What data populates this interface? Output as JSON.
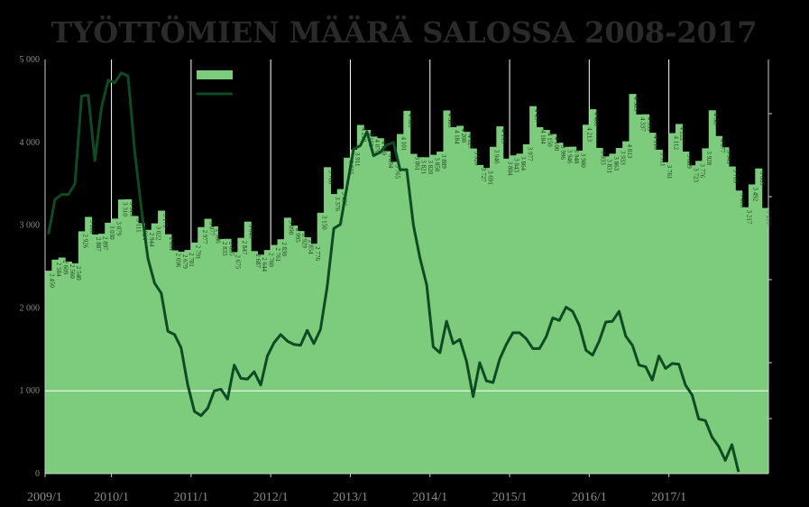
{
  "chart_data": {
    "type": "bar+line",
    "title": "TYÖTTÖMIEN MÄÄRÄ SALOSSA 2008-2017",
    "y_ticks": [
      "5 000",
      "4 000",
      "3 000",
      "2 000",
      "1 000",
      "0"
    ],
    "ylim": [
      0,
      5000
    ],
    "x_ticks": [
      "2009/1",
      "2010/1",
      "2011/1",
      "2012/1",
      "2013/1",
      "2014/1",
      "2015/1",
      "2016/1",
      "2017/1"
    ],
    "legend_placement": "top-left",
    "colors": {
      "bars": "#7dcc7d",
      "line": "#0e4a22",
      "background": "#000000"
    },
    "series": [
      {
        "values": [
          2450,
          2584,
          2609,
          2560,
          2540,
          2926,
          3100,
          2887,
          2897,
          3030,
          3079,
          3310,
          3313,
          3111,
          3024,
          2944,
          3022,
          3175,
          2891,
          2696,
          2679,
          2701,
          2791,
          2977,
          3077,
          2986,
          2833,
          2835,
          2675,
          2847,
          3043,
          2687,
          2644,
          2700,
          2761,
          2830,
          3090,
          2995,
          2929,
          2854,
          2776,
          3150,
          3700,
          3376,
          3436,
          3815,
          3911,
          4210,
          4150,
          4070,
          4050,
          3894,
          3765,
          4101,
          4381,
          3861,
          3821,
          3820,
          3850,
          3889,
          4385,
          4184,
          4200,
          4127,
          3926,
          3727,
          3691,
          3946,
          4193,
          3804,
          3843,
          3864,
          3977,
          4437,
          4184,
          4150,
          4100,
          3996,
          3946,
          3948,
          3900,
          4213,
          4400,
          3933,
          3831,
          3863,
          3933,
          4013,
          4585,
          4337,
          4339,
          4116,
          3911,
          3761,
          4112,
          4222,
          3889,
          3723,
          3776,
          3928,
          4387,
          4077,
          3941,
          3709,
          3418,
          3217,
          3492,
          3685,
          3208
        ],
        "labels_shown": [
          "2 450",
          "2 584",
          "2 609",
          "2 560",
          "2 540",
          "2 926",
          "3 100",
          "2 887",
          "2 897",
          "3 030",
          "3 079",
          "3 310",
          "3 313",
          "3 111",
          "3 024",
          "2 944",
          "3 022",
          "3 175",
          "2 891",
          "2 696",
          "2 679",
          "2 701",
          "2 791",
          "2 977",
          "3 077",
          "2 986",
          "2 833",
          "2 835",
          "2 675",
          "2 847",
          "3 043",
          "2 687",
          "2 644",
          "2 700",
          "2 761",
          "2 830",
          "3 090",
          "2 995",
          "2 929",
          "2 854",
          "2 776",
          "3 150",
          "3 700",
          "3 376",
          "3 436",
          "3 815",
          "3 911",
          "4 210",
          "4 150",
          "4 070",
          "4 050",
          "3 894",
          "3 765",
          "4 101",
          "4 381",
          "3 861",
          "3 821",
          "3 820",
          "3 850",
          "3 889",
          "4 385",
          "4 184",
          "4 200",
          "4 127",
          "3 926",
          "3 727",
          "3 691",
          "3 946",
          "4 193",
          "3 804",
          "3 843",
          "3 864",
          "3 977",
          "4 437",
          "4 184",
          "4 150",
          "4 100",
          "3 996",
          "3 946",
          "3 948",
          "3 900",
          "4 213",
          "4 400",
          "3 933",
          "3 831",
          "3 863",
          "3 933",
          "4 013",
          "4 585",
          "4 337",
          "4 339",
          "4 116",
          "3 911",
          "3 761",
          "4 112",
          "4 222",
          "3 889",
          "3 723",
          "3 776",
          "3 928",
          "4 387",
          "4 077",
          "3 941",
          "3 709",
          "3 418",
          "3 217",
          "3 492",
          "3 685",
          "3 208"
        ]
      },
      {
        "axis": "secondary (unlabeled)",
        "values": [
          2890,
          3310,
          3370,
          3370,
          3500,
          4560,
          4570,
          3780,
          4420,
          4750,
          4720,
          4840,
          4800,
          3900,
          3200,
          2600,
          2300,
          2180,
          1720,
          1680,
          1520,
          1070,
          750,
          700,
          790,
          1000,
          1020,
          900,
          1310,
          1150,
          1140,
          1230,
          1070,
          1420,
          1580,
          1680,
          1600,
          1560,
          1550,
          1730,
          1570,
          1740,
          2250,
          2960,
          3010,
          3470,
          3920,
          3960,
          4130,
          3840,
          3880,
          3970,
          4000,
          3670,
          3670,
          3000,
          2600,
          2280,
          1530,
          1460,
          1840,
          1570,
          1620,
          1360,
          930,
          1340,
          1120,
          1100,
          1380,
          1560,
          1700,
          1700,
          1630,
          1510,
          1510,
          1650,
          1880,
          1850,
          2010,
          1960,
          1790,
          1490,
          1430,
          1600,
          1830,
          1840,
          1960,
          1660,
          1550,
          1310,
          1290,
          1130,
          1420,
          1270,
          1330,
          1320,
          1070,
          950,
          660,
          640,
          440,
          330,
          160,
          350,
          20
        ]
      }
    ]
  }
}
